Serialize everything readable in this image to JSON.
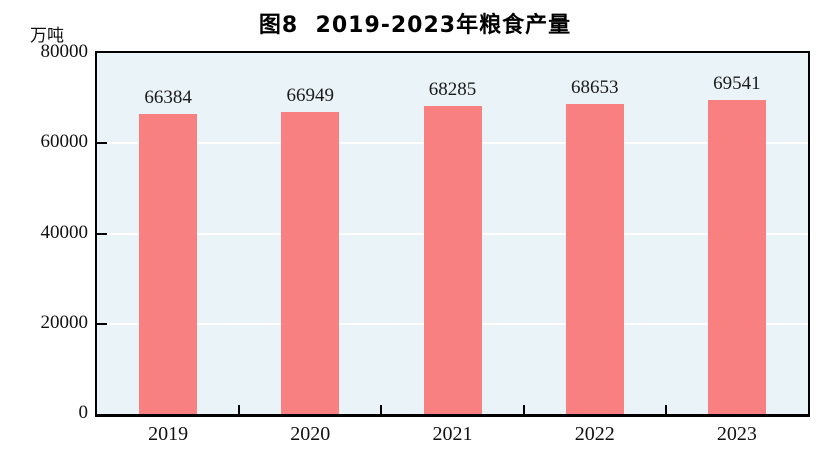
{
  "chart_data": {
    "type": "bar",
    "title": "图8  2019-2023年粮食产量",
    "unit": "万吨",
    "categories": [
      "2019",
      "2020",
      "2021",
      "2022",
      "2023"
    ],
    "values": [
      66384,
      66949,
      68285,
      68653,
      69541
    ],
    "data_labels": [
      "66384",
      "66949",
      "68285",
      "68653",
      "69541"
    ],
    "ylim": [
      0,
      80000
    ],
    "yticks": [
      0,
      20000,
      40000,
      60000,
      80000
    ],
    "ytick_labels": [
      "0",
      "20000",
      "40000",
      "60000",
      "80000"
    ],
    "xlabel": "",
    "ylabel": "万吨",
    "legend": "none",
    "grid": "horizontal",
    "gridline_color": "#FFFFFF",
    "bar_color": "#F98080",
    "plot_background": "#EAF3F8",
    "border_color": "#000000",
    "title_color": "#000000"
  }
}
